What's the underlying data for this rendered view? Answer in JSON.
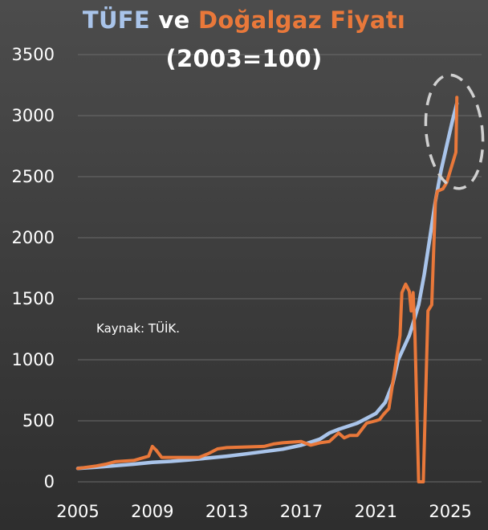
{
  "chart_data": {
    "type": "line",
    "title": {
      "part1": "TÜFE",
      "part2": " ve ",
      "part3": "Doğalgaz Fiyatı",
      "part1_color": "#a9c4ea",
      "part2_color": "#ffffff",
      "part3_color": "#e9783a"
    },
    "subtitle": "(2003=100)",
    "annotation": "Kaynak: TÜİK.",
    "xlabel": "",
    "ylabel": "",
    "xlim": [
      2005,
      2025.6
    ],
    "ylim": [
      0,
      3500
    ],
    "xticks": [
      "2005",
      "2009",
      "2013",
      "2017",
      "2021",
      "2025"
    ],
    "yticks": [
      "3500",
      "3000",
      "2500",
      "2000",
      "1500",
      "1000",
      "500",
      "0"
    ],
    "grid": "horizontal",
    "legend": "none",
    "background": "#4a4a4a",
    "series": [
      {
        "color": "#a9c4ea",
        "x": [
          2005,
          2006,
          2007,
          2008,
          2009,
          2010,
          2011,
          2012,
          2013,
          2014,
          2015,
          2016,
          2017,
          2018,
          2018.5,
          2019,
          2020,
          2021,
          2021.5,
          2021.9,
          2022.2,
          2022.5,
          2022.8,
          2023,
          2023.3,
          2023.6,
          2023.9,
          2024.2,
          2024.5,
          2024.8,
          2025.1,
          2025.35
        ],
        "y": [
          110,
          120,
          132,
          145,
          160,
          168,
          180,
          195,
          210,
          228,
          248,
          268,
          300,
          350,
          400,
          430,
          480,
          560,
          650,
          800,
          1000,
          1100,
          1200,
          1300,
          1450,
          1700,
          2000,
          2300,
          2550,
          2750,
          2950,
          3100
        ]
      },
      {
        "color": "#e9783a",
        "x": [
          2005,
          2006,
          2006.5,
          2007,
          2008,
          2008.8,
          2009.0,
          2009.2,
          2009.5,
          2011.5,
          2012,
          2012.5,
          2013,
          2015,
          2015.5,
          2016,
          2017,
          2017.5,
          2018,
          2018.5,
          2019,
          2019.3,
          2019.6,
          2020,
          2020.5,
          2021,
          2021.2,
          2021.4,
          2021.7,
          2021.9,
          2022.1,
          2022.3,
          2022.4,
          2022.6,
          2022.8,
          2022.9,
          2023.0,
          2023.1,
          2023.3,
          2023.45,
          2023.55,
          2023.8,
          2024.0,
          2024.2,
          2024.3,
          2024.6,
          2024.8,
          2024.9,
          2025.0,
          2025.1,
          2025.2,
          2025.3,
          2025.35
        ],
        "y": [
          110,
          130,
          145,
          165,
          175,
          210,
          290,
          260,
          200,
          200,
          230,
          270,
          280,
          290,
          310,
          320,
          330,
          300,
          320,
          330,
          400,
          360,
          380,
          380,
          480,
          500,
          510,
          550,
          600,
          800,
          1000,
          1200,
          1550,
          1620,
          1560,
          1400,
          1550,
          1200,
          0,
          0,
          0,
          1400,
          1450,
          2300,
          2380,
          2400,
          2450,
          2500,
          2550,
          2600,
          2650,
          2700,
          3150
        ]
      }
    ]
  }
}
